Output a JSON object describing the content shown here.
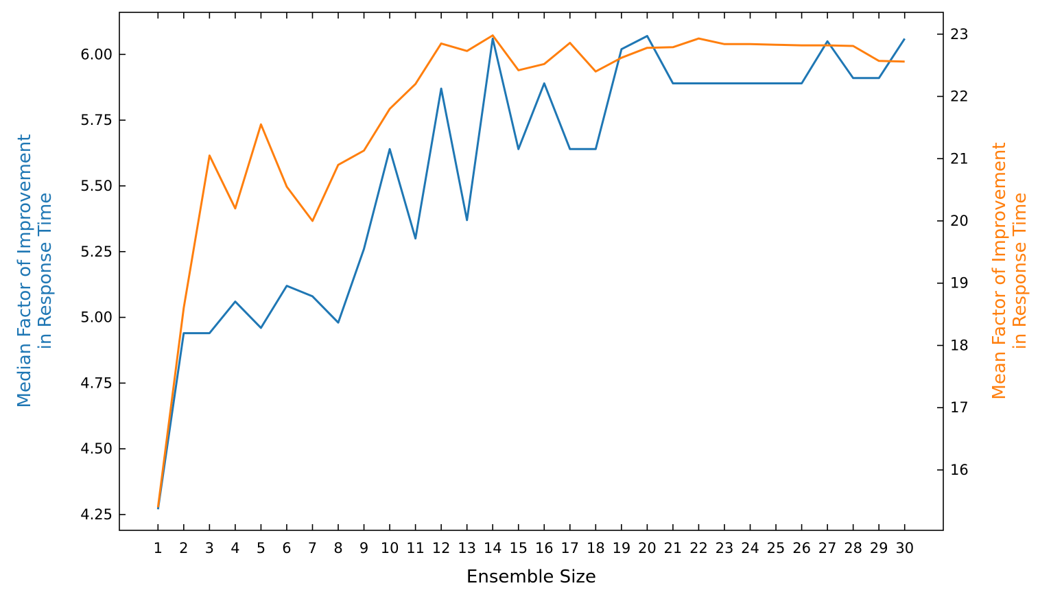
{
  "chart_data": {
    "type": "line",
    "title": "",
    "xlabel": "Ensemble Size",
    "ylabel_left": "Median Factor of Improvement\nin Response Time",
    "ylabel_right": "Mean Factor of Improvement\nin Response Time",
    "x": [
      1,
      2,
      3,
      4,
      5,
      6,
      7,
      8,
      9,
      10,
      11,
      12,
      13,
      14,
      15,
      16,
      17,
      18,
      19,
      20,
      21,
      22,
      23,
      24,
      25,
      26,
      27,
      28,
      29,
      30
    ],
    "xticks": [
      "1",
      "2",
      "3",
      "4",
      "5",
      "6",
      "7",
      "8",
      "9",
      "10",
      "11",
      "12",
      "13",
      "14",
      "15",
      "16",
      "17",
      "18",
      "19",
      "20",
      "21",
      "22",
      "23",
      "24",
      "25",
      "26",
      "27",
      "28",
      "29",
      "30"
    ],
    "xlim": [
      -0.5,
      31.5
    ],
    "ylim_left": [
      4.19,
      6.16
    ],
    "ylim_right": [
      15.03,
      23.35
    ],
    "yticks_left": [
      "4.25",
      "4.50",
      "4.75",
      "5.00",
      "5.25",
      "5.50",
      "5.75",
      "6.00"
    ],
    "yticks_left_values": [
      4.25,
      4.5,
      4.75,
      5.0,
      5.25,
      5.5,
      5.75,
      6.0
    ],
    "yticks_right": [
      "16",
      "17",
      "18",
      "19",
      "20",
      "21",
      "22",
      "23"
    ],
    "yticks_right_values": [
      16,
      17,
      18,
      19,
      20,
      21,
      22,
      23
    ],
    "grid": false,
    "series": [
      {
        "axis": "left",
        "color": "#1f77b4",
        "values": [
          4.27,
          4.94,
          4.94,
          5.06,
          4.96,
          5.12,
          5.08,
          4.98,
          5.26,
          5.64,
          5.3,
          5.87,
          5.37,
          6.06,
          5.64,
          5.89,
          5.64,
          5.64,
          6.02,
          6.07,
          5.89,
          5.89,
          5.89,
          5.89,
          5.89,
          5.89,
          6.05,
          5.91,
          5.91,
          6.06
        ]
      },
      {
        "axis": "right",
        "color": "#ff7f0e",
        "values": [
          15.4,
          18.6,
          21.05,
          20.2,
          21.55,
          20.55,
          20.0,
          20.9,
          21.13,
          21.8,
          22.2,
          22.85,
          22.73,
          22.98,
          22.42,
          22.52,
          22.86,
          22.4,
          22.62,
          22.78,
          22.79,
          22.93,
          22.84,
          22.84,
          22.83,
          22.82,
          22.82,
          22.81,
          22.57,
          22.56
        ]
      }
    ]
  }
}
